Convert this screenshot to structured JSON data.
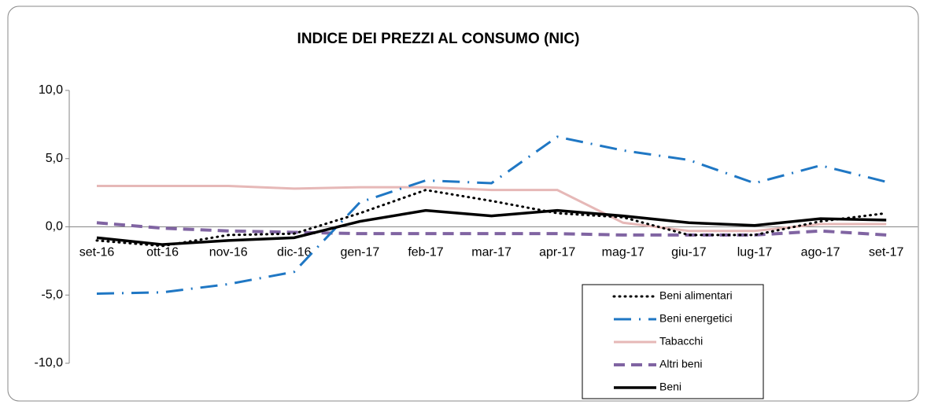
{
  "chart_data": {
    "type": "line",
    "title": "INDICE DEI PREZZI AL CONSUMO (NIC)",
    "categories": [
      "set-16",
      "ott-16",
      "nov-16",
      "dic-16",
      "gen-17",
      "feb-17",
      "mar-17",
      "apr-17",
      "mag-17",
      "giu-17",
      "lug-17",
      "ago-17",
      "set-17"
    ],
    "series": [
      {
        "name": "Beni alimentari",
        "color": "#000000",
        "values": [
          -1.0,
          -1.4,
          -0.6,
          -0.5,
          1.0,
          2.7,
          1.9,
          1.0,
          0.7,
          -0.6,
          -0.6,
          0.4,
          1.0
        ]
      },
      {
        "name": "Beni energetici",
        "color": "#1f77c4",
        "values": [
          -4.9,
          -4.8,
          -4.2,
          -3.3,
          1.8,
          3.4,
          3.2,
          6.6,
          5.6,
          4.9,
          3.2,
          4.5,
          3.3
        ]
      },
      {
        "name": "Tabacchi",
        "color": "#e6b8b7",
        "values": [
          3.0,
          3.0,
          3.0,
          2.8,
          2.9,
          2.9,
          2.7,
          2.7,
          0.3,
          -0.3,
          -0.3,
          0.2,
          0.2
        ]
      },
      {
        "name": "Altri beni",
        "color": "#8064a2",
        "values": [
          0.3,
          -0.1,
          -0.3,
          -0.4,
          -0.5,
          -0.5,
          -0.5,
          -0.5,
          -0.6,
          -0.6,
          -0.6,
          -0.3,
          -0.6
        ]
      },
      {
        "name": "Beni",
        "color": "#000000",
        "values": [
          -0.8,
          -1.3,
          -1.0,
          -0.8,
          0.4,
          1.2,
          0.8,
          1.2,
          0.8,
          0.3,
          0.1,
          0.6,
          0.5
        ]
      }
    ],
    "ylim": [
      -10,
      10
    ],
    "yticks": [
      {
        "value": -10,
        "label": "-10,0"
      },
      {
        "value": -5,
        "label": "-5,0"
      },
      {
        "value": 0,
        "label": "0,0"
      },
      {
        "value": 5,
        "label": "5,0"
      },
      {
        "value": 10,
        "label": "10,0"
      }
    ]
  }
}
